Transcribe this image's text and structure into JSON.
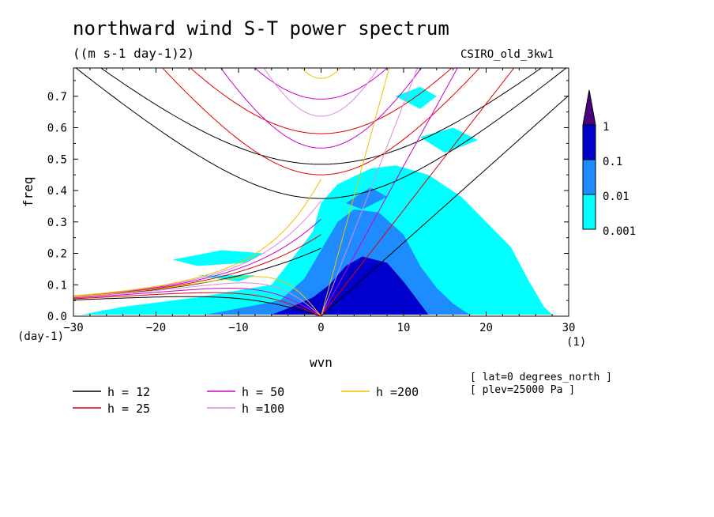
{
  "title": "northward wind S-T power spectrum",
  "subtitle": "((m s-1 day-1)2)",
  "model_label": "CSIRO_old_3kw1",
  "annotations": {
    "lat": "[ lat=0 degrees_north ]",
    "plev": "[ plev=25000 Pa ]"
  },
  "chart_data": {
    "type": "heatmap",
    "xlabel": "wvn",
    "ylabel": "freq",
    "x_unit": "(1)",
    "y_unit": "(day-1)",
    "xlim": [
      -30,
      30
    ],
    "ylim": [
      0,
      0.79
    ],
    "xticks": [
      -30,
      -20,
      -10,
      0,
      10,
      20,
      30
    ],
    "yticks": [
      0.0,
      0.1,
      0.2,
      0.3,
      0.4,
      0.5,
      0.6,
      0.7
    ],
    "colorbar": {
      "levels": [
        "0.001",
        "0.01",
        "0.1",
        "1"
      ],
      "colors": [
        "#00ffff",
        "#1e8cff",
        "#0000cd",
        "#4b0082"
      ]
    },
    "legend": {
      "placement": "bottom",
      "entries": [
        {
          "label": "h = 12",
          "color": "#000000"
        },
        {
          "label": "h = 25",
          "color": "#e00000"
        },
        {
          "label": "h = 50",
          "color": "#cc00cc"
        },
        {
          "label": "h =100",
          "color": "#dd88dd"
        },
        {
          "label": "h =200",
          "color": "#f0c000"
        }
      ]
    },
    "equivalent_depths_m": [
      12,
      25,
      50,
      100,
      200
    ],
    "power_regions": [
      {
        "level": 0,
        "points": [
          [
            -29,
            0.005
          ],
          [
            -24,
            0.03
          ],
          [
            -15,
            0.06
          ],
          [
            -6,
            0.1
          ],
          [
            -3,
            0.2
          ],
          [
            -1,
            0.27
          ],
          [
            0,
            0.36
          ],
          [
            2,
            0.42
          ],
          [
            6,
            0.47
          ],
          [
            9,
            0.48
          ],
          [
            13,
            0.45
          ],
          [
            17,
            0.38
          ],
          [
            20,
            0.3
          ],
          [
            23,
            0.22
          ],
          [
            25,
            0.12
          ],
          [
            27,
            0.03
          ],
          [
            28,
            0.005
          ]
        ]
      },
      {
        "level": 0,
        "points": [
          [
            -18,
            0.18
          ],
          [
            -12,
            0.21
          ],
          [
            -7,
            0.2
          ],
          [
            -9,
            0.17
          ],
          [
            -15,
            0.16
          ]
        ]
      },
      {
        "level": 0,
        "points": [
          [
            9,
            0.7
          ],
          [
            12,
            0.73
          ],
          [
            14,
            0.7
          ],
          [
            12,
            0.66
          ]
        ]
      },
      {
        "level": 0,
        "points": [
          [
            12,
            0.57
          ],
          [
            16,
            0.6
          ],
          [
            19,
            0.56
          ],
          [
            15,
            0.52
          ]
        ]
      },
      {
        "level": 0,
        "points": [
          [
            -15,
            0.13
          ],
          [
            -8,
            0.13
          ],
          [
            -10,
            0.11
          ]
        ]
      },
      {
        "level": 1,
        "points": [
          [
            -14,
            0.005
          ],
          [
            -10,
            0.025
          ],
          [
            -5,
            0.05
          ],
          [
            -2,
            0.12
          ],
          [
            0,
            0.21
          ],
          [
            2,
            0.3
          ],
          [
            4,
            0.34
          ],
          [
            7,
            0.33
          ],
          [
            10,
            0.26
          ],
          [
            12,
            0.16
          ],
          [
            14,
            0.09
          ],
          [
            16,
            0.04
          ],
          [
            18,
            0.005
          ]
        ]
      },
      {
        "level": 1,
        "points": [
          [
            3,
            0.36
          ],
          [
            6,
            0.41
          ],
          [
            8,
            0.38
          ],
          [
            5,
            0.34
          ]
        ]
      },
      {
        "level": 2,
        "points": [
          [
            -6,
            0.005
          ],
          [
            -4,
            0.025
          ],
          [
            -1,
            0.06
          ],
          [
            1,
            0.1
          ],
          [
            3,
            0.16
          ],
          [
            5,
            0.19
          ],
          [
            8,
            0.17
          ],
          [
            10,
            0.11
          ],
          [
            12,
            0.04
          ],
          [
            13,
            0.005
          ]
        ]
      }
    ]
  }
}
